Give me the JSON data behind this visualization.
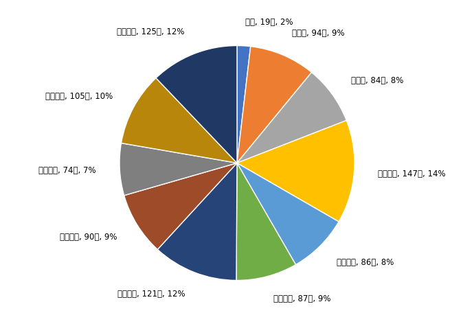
{
  "labels": [
    "０歳, 19人, 2%",
    "１歳～, 94人, 9%",
    "５歳～, 84人, 8%",
    "１０歳～, 147人, 14%",
    "２０歳～, 86人, 8%",
    "３０歳～, 87人, 9%",
    "４０歳～, 121人, 12%",
    "５０歳～, 90人, 9%",
    "６０歳～, 74人, 7%",
    "７０歳～, 105人, 10%",
    "８０歳～, 125人, 12%"
  ],
  "values": [
    19,
    94,
    84,
    147,
    86,
    87,
    121,
    90,
    74,
    105,
    125
  ],
  "colors": [
    "#4472C4",
    "#ED7D31",
    "#A5A5A5",
    "#FFC000",
    "#5B9BD5",
    "#70AD47",
    "#264478",
    "#9E4B2A",
    "#7F7F7F",
    "#B8860B",
    "#1F3864"
  ],
  "figsize": [
    6.9,
    4.75
  ],
  "dpi": 100,
  "background_color": "#FFFFFF",
  "label_fontsize": 8.5,
  "startangle": 90
}
